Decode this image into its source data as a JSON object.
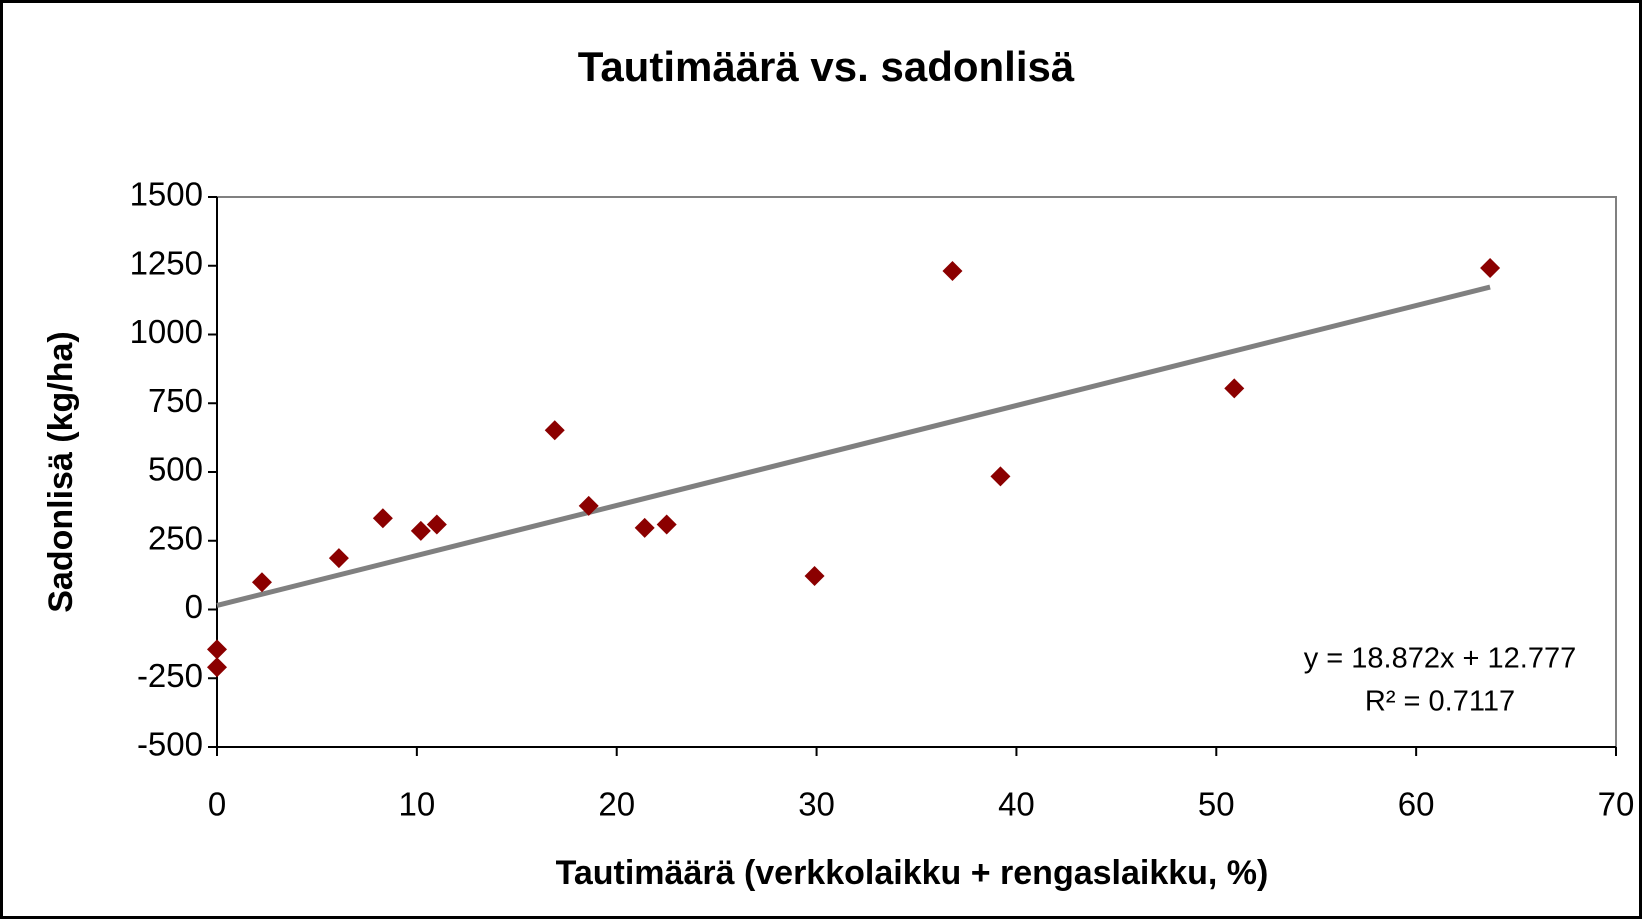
{
  "chart_data": {
    "type": "scatter",
    "title": "Tautimäärä vs. sadonlisä",
    "x_label": "Tautimäärä (verkkolaikku + rengaslaikku, %)",
    "y_label": "Sadonlisä (kg/ha)",
    "series": [
      {
        "name": "Sadonlisä",
        "color": "#8b0000",
        "x": [
          0,
          0,
          2.25,
          6.1,
          8.3,
          10.2,
          11.0,
          16.9,
          18.6,
          21.4,
          22.5,
          29.9,
          36.8,
          39.2,
          50.9,
          63.7
        ],
        "values": [
          -145,
          -210,
          99,
          187,
          332,
          286,
          309,
          652,
          377,
          297,
          309,
          122,
          1231,
          484,
          804,
          1242
        ]
      }
    ],
    "trendline": {
      "color": "#808080",
      "equation": "y = 18.872x + 12.777",
      "r_squared": "R² = 0.7117"
    },
    "xlim": [
      0,
      70
    ],
    "xticks": [
      0,
      10,
      20,
      30,
      40,
      50,
      60,
      70
    ],
    "ylim": [
      -500,
      1500
    ],
    "yticks": [
      -500,
      -250,
      0,
      250,
      500,
      750,
      1000,
      1250,
      1500
    ],
    "grid": false
  }
}
